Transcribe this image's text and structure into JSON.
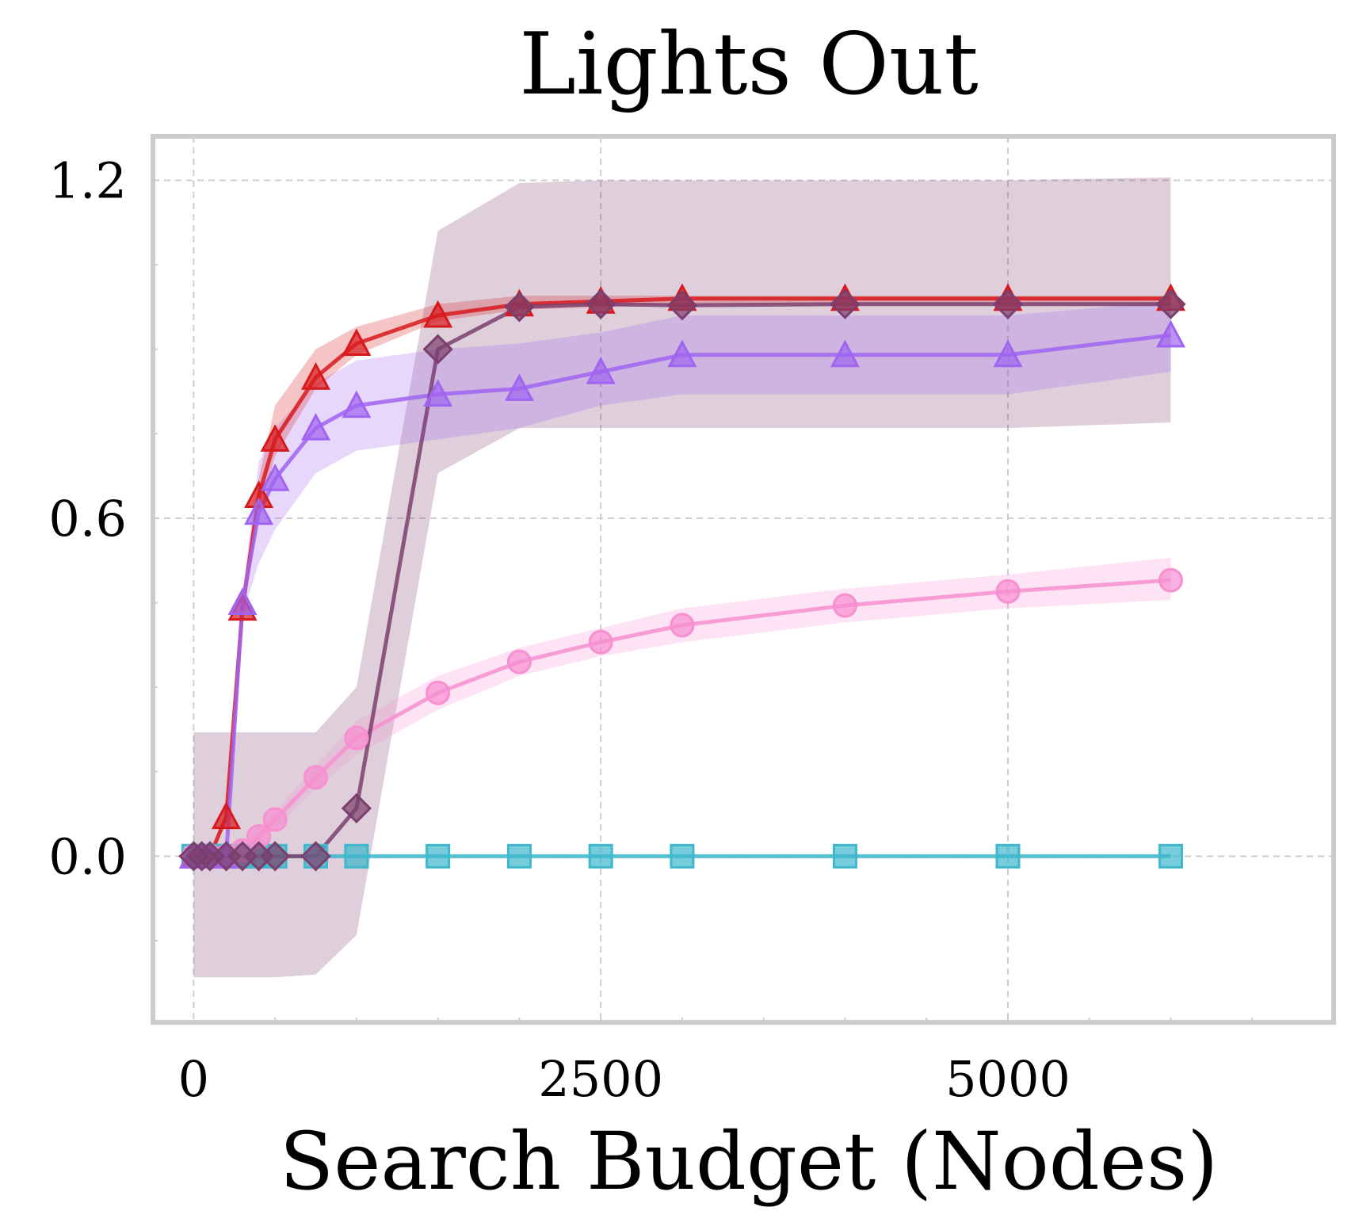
{
  "chart_data": {
    "type": "line",
    "title": "Lights Out",
    "xlabel": "Search Budget (Nodes)",
    "ylabel": "",
    "xlim": [
      -250,
      7000
    ],
    "ylim": [
      -0.295,
      1.278
    ],
    "xticks": [
      0,
      2500,
      5000
    ],
    "xtick_labels": [
      "0",
      "2500",
      "5000"
    ],
    "yticks": [
      0.0,
      0.6,
      1.2
    ],
    "ytick_labels": [
      "0.0",
      "0.6",
      "1.2"
    ],
    "grid": true,
    "series": [
      {
        "color": "#d7191c",
        "marker": "triangle",
        "x": [
          0,
          50,
          100,
          200,
          300,
          400,
          500,
          750,
          1000,
          1500,
          2000,
          2500,
          3000,
          4000,
          5000,
          6000
        ],
        "y": [
          0.0,
          0.0,
          0.0,
          0.07,
          0.44,
          0.64,
          0.74,
          0.85,
          0.91,
          0.96,
          0.98,
          0.985,
          0.99,
          0.99,
          0.99,
          0.99
        ],
        "lower": [
          0.0,
          0.0,
          0.0,
          0.06,
          0.42,
          0.61,
          0.71,
          0.83,
          0.89,
          0.95,
          0.97,
          0.975,
          0.98,
          0.98,
          0.98,
          0.98
        ],
        "upper": [
          0.0,
          0.0,
          0.0,
          0.08,
          0.46,
          0.67,
          0.8,
          0.9,
          0.94,
          0.98,
          0.995,
          0.995,
          0.995,
          0.995,
          0.995,
          0.995
        ]
      },
      {
        "color": "#a064f0",
        "marker": "triangle",
        "x": [
          0,
          50,
          100,
          200,
          300,
          400,
          500,
          750,
          1000,
          1500,
          2000,
          2500,
          3000,
          4000,
          5000,
          6000
        ],
        "y": [
          0.0,
          0.0,
          0.0,
          0.0,
          0.45,
          0.61,
          0.67,
          0.76,
          0.8,
          0.82,
          0.83,
          0.86,
          0.89,
          0.89,
          0.89,
          0.925
        ],
        "lower": [
          0.0,
          0.0,
          0.0,
          0.0,
          0.43,
          0.52,
          0.58,
          0.68,
          0.72,
          0.74,
          0.76,
          0.8,
          0.82,
          0.82,
          0.82,
          0.86
        ],
        "upper": [
          0.0,
          0.0,
          0.0,
          0.0,
          0.47,
          0.7,
          0.76,
          0.84,
          0.88,
          0.9,
          0.91,
          0.93,
          0.96,
          0.96,
          0.96,
          0.985
        ]
      },
      {
        "color": "#7b3f6e",
        "marker": "diamond",
        "x": [
          0,
          50,
          100,
          200,
          300,
          400,
          500,
          750,
          1000,
          1500,
          2000,
          2500,
          3000,
          4000,
          5000,
          6000
        ],
        "y": [
          0.0,
          0.0,
          0.0,
          0.0,
          0.0,
          0.0,
          0.0,
          0.0,
          0.085,
          0.9,
          0.975,
          0.98,
          0.978,
          0.98,
          0.98,
          0.98
        ],
        "lower": [
          -0.215,
          -0.215,
          -0.215,
          -0.215,
          -0.215,
          -0.215,
          -0.215,
          -0.21,
          -0.14,
          0.68,
          0.76,
          0.76,
          0.76,
          0.76,
          0.76,
          0.77
        ],
        "upper": [
          0.22,
          0.22,
          0.22,
          0.22,
          0.22,
          0.22,
          0.22,
          0.22,
          0.3,
          1.11,
          1.195,
          1.2,
          1.2,
          1.2,
          1.2,
          1.205
        ]
      },
      {
        "color": "#f78fd0",
        "marker": "circle",
        "x": [
          0,
          50,
          100,
          200,
          300,
          400,
          500,
          750,
          1000,
          1500,
          2000,
          2500,
          3000,
          4000,
          5000,
          6000
        ],
        "y": [
          0.0,
          0.0,
          0.0,
          0.0,
          0.01,
          0.035,
          0.065,
          0.14,
          0.21,
          0.29,
          0.345,
          0.38,
          0.41,
          0.445,
          0.47,
          0.49
        ],
        "lower": [
          0.0,
          0.0,
          0.0,
          0.0,
          0.0,
          0.02,
          0.05,
          0.12,
          0.18,
          0.26,
          0.32,
          0.355,
          0.38,
          0.415,
          0.44,
          0.455
        ],
        "upper": [
          0.0,
          0.0,
          0.0,
          0.0,
          0.02,
          0.05,
          0.08,
          0.16,
          0.24,
          0.32,
          0.37,
          0.405,
          0.44,
          0.475,
          0.5,
          0.53
        ]
      },
      {
        "color": "#3db8cc",
        "marker": "square",
        "x": [
          0,
          50,
          100,
          200,
          300,
          400,
          500,
          750,
          1000,
          1500,
          2000,
          2500,
          3000,
          4000,
          5000,
          6000
        ],
        "y": [
          0.0,
          0.0,
          0.0,
          0.0,
          0.0,
          0.0,
          0.0,
          0.0,
          0.0,
          0.0,
          0.0,
          0.0,
          0.0,
          0.0,
          0.0,
          0.0
        ],
        "lower": [
          0.0,
          0.0,
          0.0,
          0.0,
          0.0,
          0.0,
          0.0,
          0.0,
          0.0,
          0.0,
          0.0,
          0.0,
          0.0,
          0.0,
          0.0,
          0.0
        ],
        "upper": [
          0.0,
          0.0,
          0.0,
          0.0,
          0.0,
          0.0,
          0.0,
          0.0,
          0.0,
          0.0,
          0.0,
          0.0,
          0.0,
          0.0,
          0.0,
          0.0
        ]
      }
    ]
  }
}
